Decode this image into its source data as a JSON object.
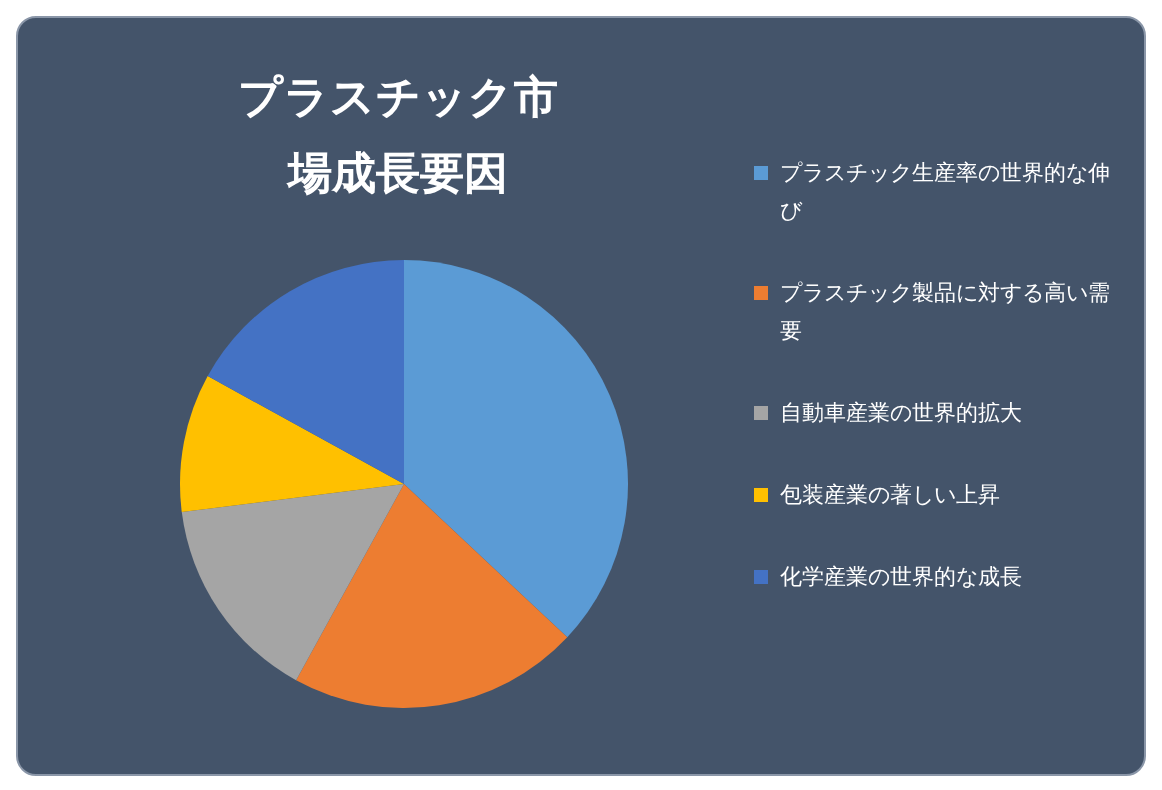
{
  "chart_data": {
    "type": "pie",
    "title": "プラスチック市場成長要因",
    "categories": [
      "プラスチック生産率の世界的な伸び",
      "プラスチック製品に対する高い需要",
      "自動車産業の世界的拡大",
      "包装産業の著しい上昇",
      "化学産業の世界的な成長"
    ],
    "values": [
      37,
      21,
      15,
      10,
      17
    ],
    "colors": [
      "#5b9bd5",
      "#ed7d31",
      "#a5a5a5",
      "#ffc000",
      "#4472c4"
    ],
    "legend": "right"
  }
}
